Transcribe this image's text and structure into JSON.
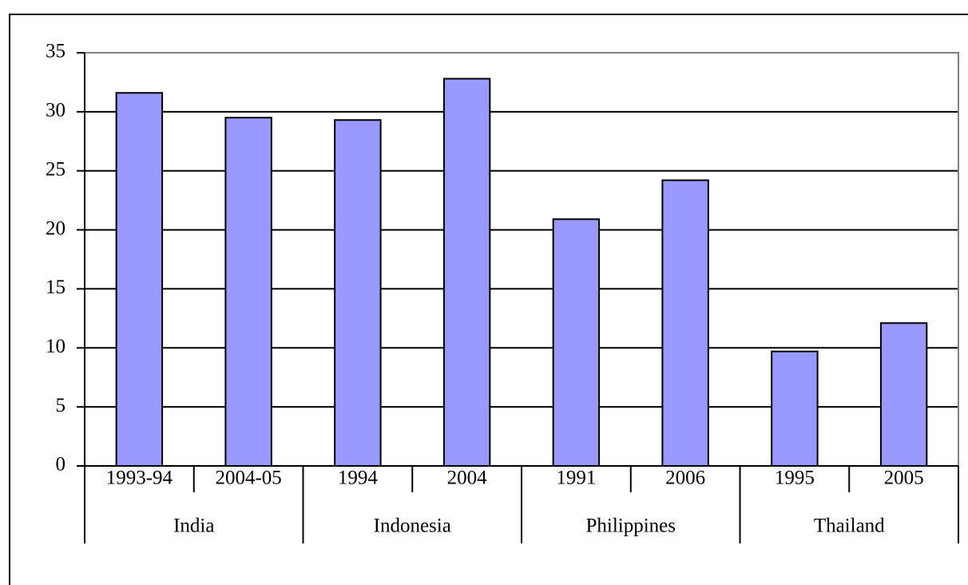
{
  "chart_data": {
    "type": "bar",
    "color": "#9999ff",
    "groups": [
      {
        "name": "India",
        "categories": [
          "1993-94",
          "2004-05"
        ],
        "values": [
          31.6,
          29.5
        ]
      },
      {
        "name": "Indonesia",
        "categories": [
          "1994",
          "2004"
        ],
        "values": [
          29.3,
          32.8
        ]
      },
      {
        "name": "Philippines",
        "categories": [
          "1991",
          "2006"
        ],
        "values": [
          20.9,
          24.2
        ]
      },
      {
        "name": "Thailand",
        "categories": [
          "1995",
          "2005"
        ],
        "values": [
          9.7,
          12.1
        ]
      }
    ],
    "ylim": [
      0,
      35
    ],
    "yticks": [
      0,
      5,
      10,
      15,
      20,
      25,
      30,
      35
    ],
    "grid": true
  }
}
